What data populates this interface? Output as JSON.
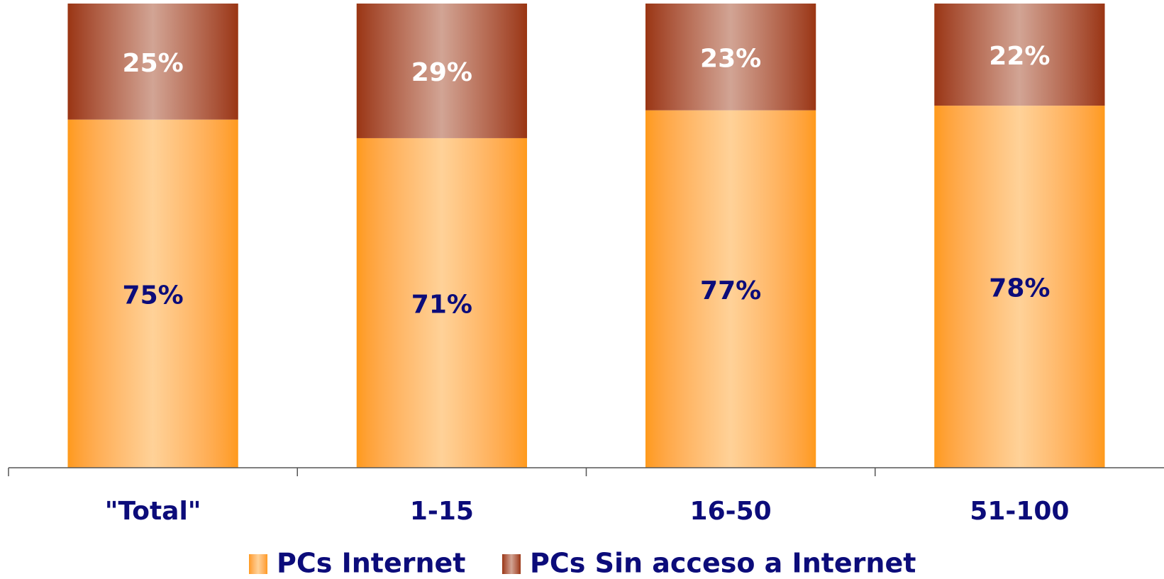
{
  "chart_data": {
    "type": "stacked_bar",
    "categories": [
      "\"Total\"",
      "1-15",
      "16-50",
      "51-100"
    ],
    "series": [
      {
        "name": "PCs Internet",
        "color": "#ff9a1a",
        "label_color": "#0c0c7a",
        "values": [
          75,
          71,
          77,
          78
        ],
        "value_labels": [
          "75%",
          "71%",
          "77%",
          "78%"
        ]
      },
      {
        "name": "PCs Sin acceso a Internet",
        "color": "#9a3512",
        "label_color": "#ffffff",
        "values": [
          25,
          29,
          23,
          22
        ],
        "value_labels": [
          "25%",
          "29%",
          "23%",
          "22%"
        ]
      }
    ],
    "ylim": [
      0,
      100
    ],
    "legend": "bottom"
  }
}
